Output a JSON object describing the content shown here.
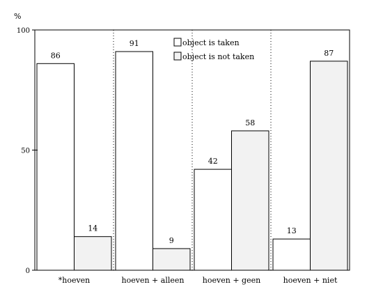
{
  "chart_data": {
    "type": "bar",
    "title": "",
    "xlabel": "",
    "ylabel": "%",
    "ylim": [
      0,
      100
    ],
    "yticks": [
      0,
      50,
      100
    ],
    "grid": false,
    "legend_position": "top-center",
    "categories": [
      "*hoeven",
      "hoeven + alleen",
      "hoeven + geen",
      "hoeven + niet"
    ],
    "series": [
      {
        "name": "object is taken",
        "color": "#ffffff",
        "values": [
          86,
          91,
          42,
          13
        ]
      },
      {
        "name": "object is not taken",
        "color": "#f2f2f2",
        "values": [
          14,
          9,
          58,
          87
        ]
      }
    ]
  }
}
